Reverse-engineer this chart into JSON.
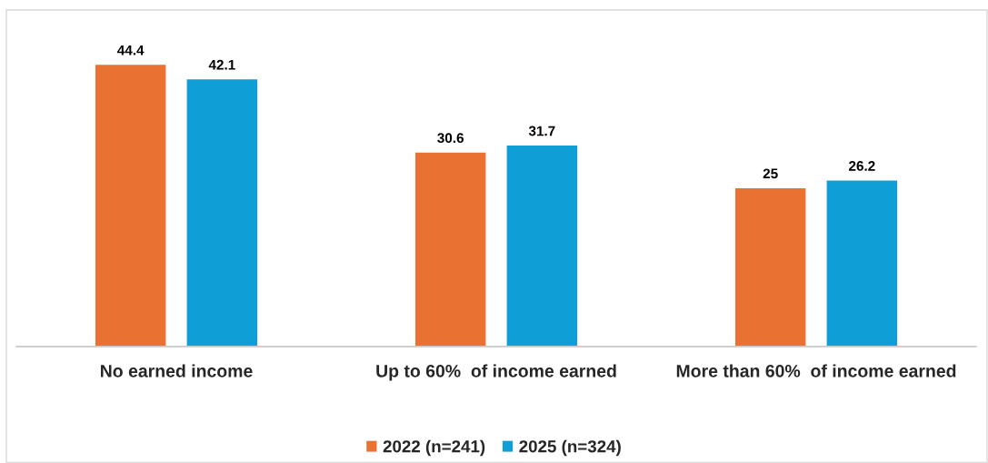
{
  "chart_data": {
    "type": "bar",
    "categories": [
      "No earned income",
      "Up to 60%  of income earned",
      "More than 60%  of income earned"
    ],
    "series": [
      {
        "name": "2022 (n=241)",
        "color": "#e97132",
        "values": [
          44.4,
          30.6,
          25
        ]
      },
      {
        "name": "2025 (n=324)",
        "color": "#0f9ed5",
        "values": [
          42.1,
          31.7,
          26.2
        ]
      }
    ],
    "tick_labels": "x",
    "data_labels": true,
    "legend": "bottom",
    "grid": false
  }
}
